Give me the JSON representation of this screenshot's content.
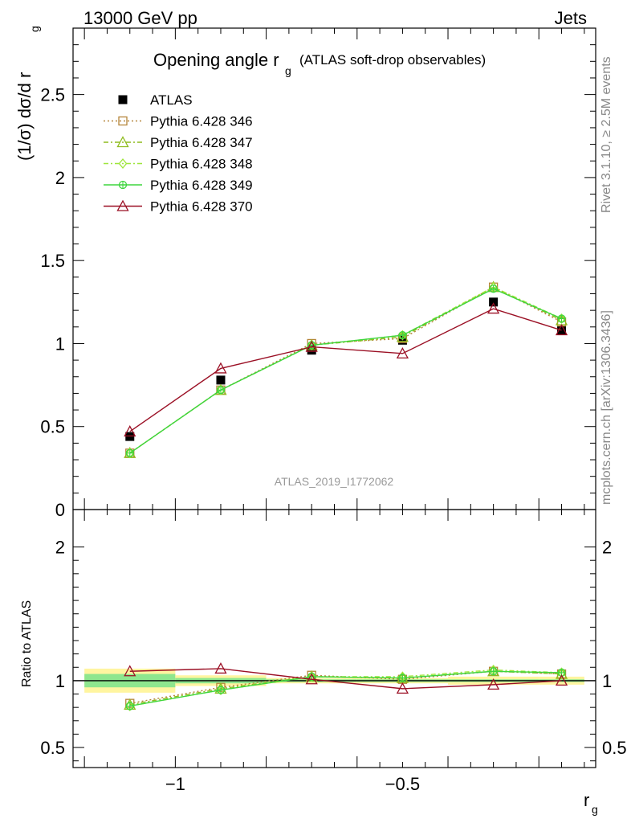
{
  "header": {
    "energy_label": "13000 GeV pp",
    "process_label": "Jets",
    "analysis_id": "ATLAS_2019_I1772062"
  },
  "side_text": {
    "rivet": "Rivet 3.1.10, ≥ 2.5M events",
    "mcplots": "mcplots.cern.ch [arXiv:1306.3436]"
  },
  "chart_data": [
    {
      "type": "line",
      "title_main": "Opening angle r",
      "title_sub": "g",
      "title_suffix": "(ATLAS soft-drop observables)",
      "ylabel": "(1/σ) dσ/d r",
      "ylabel_sub": "g",
      "x_range": [
        -1.225,
        -0.075
      ],
      "ylim": [
        0,
        2.9
      ],
      "yticks": [
        0.5,
        1,
        1.5,
        2,
        2.5
      ],
      "yticklabels": [
        "0.5",
        "1",
        "1.5",
        "2",
        "2.5"
      ],
      "bottom_tick_label": "0",
      "x": [
        -1.1,
        -0.9,
        -0.7,
        -0.5,
        -0.3,
        -0.15
      ],
      "x_edges": [
        -1.2,
        -1.0,
        -0.8,
        -0.6,
        -0.4,
        -0.2,
        -0.1
      ],
      "legend_position": "top-left",
      "series": [
        {
          "name": "ATLAS",
          "values": [
            0.44,
            0.78,
            0.96,
            1.02,
            1.25,
            1.08
          ],
          "color": "#000000",
          "marker": "square-filled",
          "line": "none"
        },
        {
          "name": "Pythia 6.428 346",
          "values": [
            0.34,
            0.72,
            1.0,
            1.03,
            1.34,
            1.13
          ],
          "color": "#b5853a",
          "marker": "square-open",
          "line": "dotted"
        },
        {
          "name": "Pythia 6.428 347",
          "values": [
            0.34,
            0.72,
            0.99,
            1.04,
            1.34,
            1.14
          ],
          "color": "#8fbc1e",
          "marker": "triangle-open",
          "line": "dashdot"
        },
        {
          "name": "Pythia 6.428 348",
          "values": [
            0.34,
            0.72,
            0.99,
            1.05,
            1.34,
            1.15
          ],
          "color": "#9ee63a",
          "marker": "diamond-open",
          "line": "dashdot"
        },
        {
          "name": "Pythia 6.428 349",
          "values": [
            0.34,
            0.72,
            0.99,
            1.05,
            1.33,
            1.15
          ],
          "color": "#3ed63e",
          "marker": "circle-cross",
          "line": "solid"
        },
        {
          "name": "Pythia 6.428 370",
          "values": [
            0.47,
            0.85,
            0.98,
            0.94,
            1.21,
            1.08
          ],
          "color": "#9b1025",
          "marker": "triangle-open",
          "line": "solid"
        }
      ]
    },
    {
      "type": "line",
      "ylabel": "Ratio to ATLAS",
      "xlabel": "r",
      "xlabel_sub": "g",
      "x_range": [
        -1.225,
        -0.075
      ],
      "ylim": [
        0.35,
        2.28
      ],
      "yticks": [
        0.5,
        1,
        2
      ],
      "yticklabels": [
        "0.5",
        "1",
        "2"
      ],
      "xticks": [
        -1,
        -0.5
      ],
      "xticklabels": [
        "−1",
        "−0.5"
      ],
      "x": [
        -1.1,
        -0.9,
        -0.7,
        -0.5,
        -0.3,
        -0.15
      ],
      "x_edges": [
        -1.2,
        -1.0,
        -0.8,
        -0.6,
        -0.4,
        -0.2,
        -0.1
      ],
      "bands": {
        "inner_color": "#8ee68e",
        "outer_color": "#fff5a0",
        "inner_halfwidth": [
          0.05,
          0.02,
          0.01,
          0.01,
          0.01,
          0.01
        ],
        "outer_halfwidth": [
          0.09,
          0.04,
          0.02,
          0.02,
          0.03,
          0.03
        ]
      },
      "series": [
        {
          "name": "Pythia 6.428 346",
          "values": [
            0.83,
            0.95,
            1.04,
            1.01,
            1.07,
            1.05
          ],
          "color": "#b5853a",
          "marker": "square-open",
          "line": "dotted"
        },
        {
          "name": "Pythia 6.428 347",
          "values": [
            0.82,
            0.94,
            1.03,
            1.02,
            1.07,
            1.05
          ],
          "color": "#8fbc1e",
          "marker": "triangle-open",
          "line": "dashdot"
        },
        {
          "name": "Pythia 6.428 348",
          "values": [
            0.81,
            0.93,
            1.03,
            1.03,
            1.08,
            1.06
          ],
          "color": "#9ee63a",
          "marker": "diamond-open",
          "line": "dashdot"
        },
        {
          "name": "Pythia 6.428 349",
          "values": [
            0.81,
            0.93,
            1.03,
            1.02,
            1.07,
            1.06
          ],
          "color": "#3ed63e",
          "marker": "circle-cross",
          "line": "solid"
        },
        {
          "name": "Pythia 6.428 370",
          "values": [
            1.07,
            1.09,
            1.01,
            0.94,
            0.97,
            1.0
          ],
          "color": "#9b1025",
          "marker": "triangle-open",
          "line": "solid"
        }
      ]
    }
  ]
}
